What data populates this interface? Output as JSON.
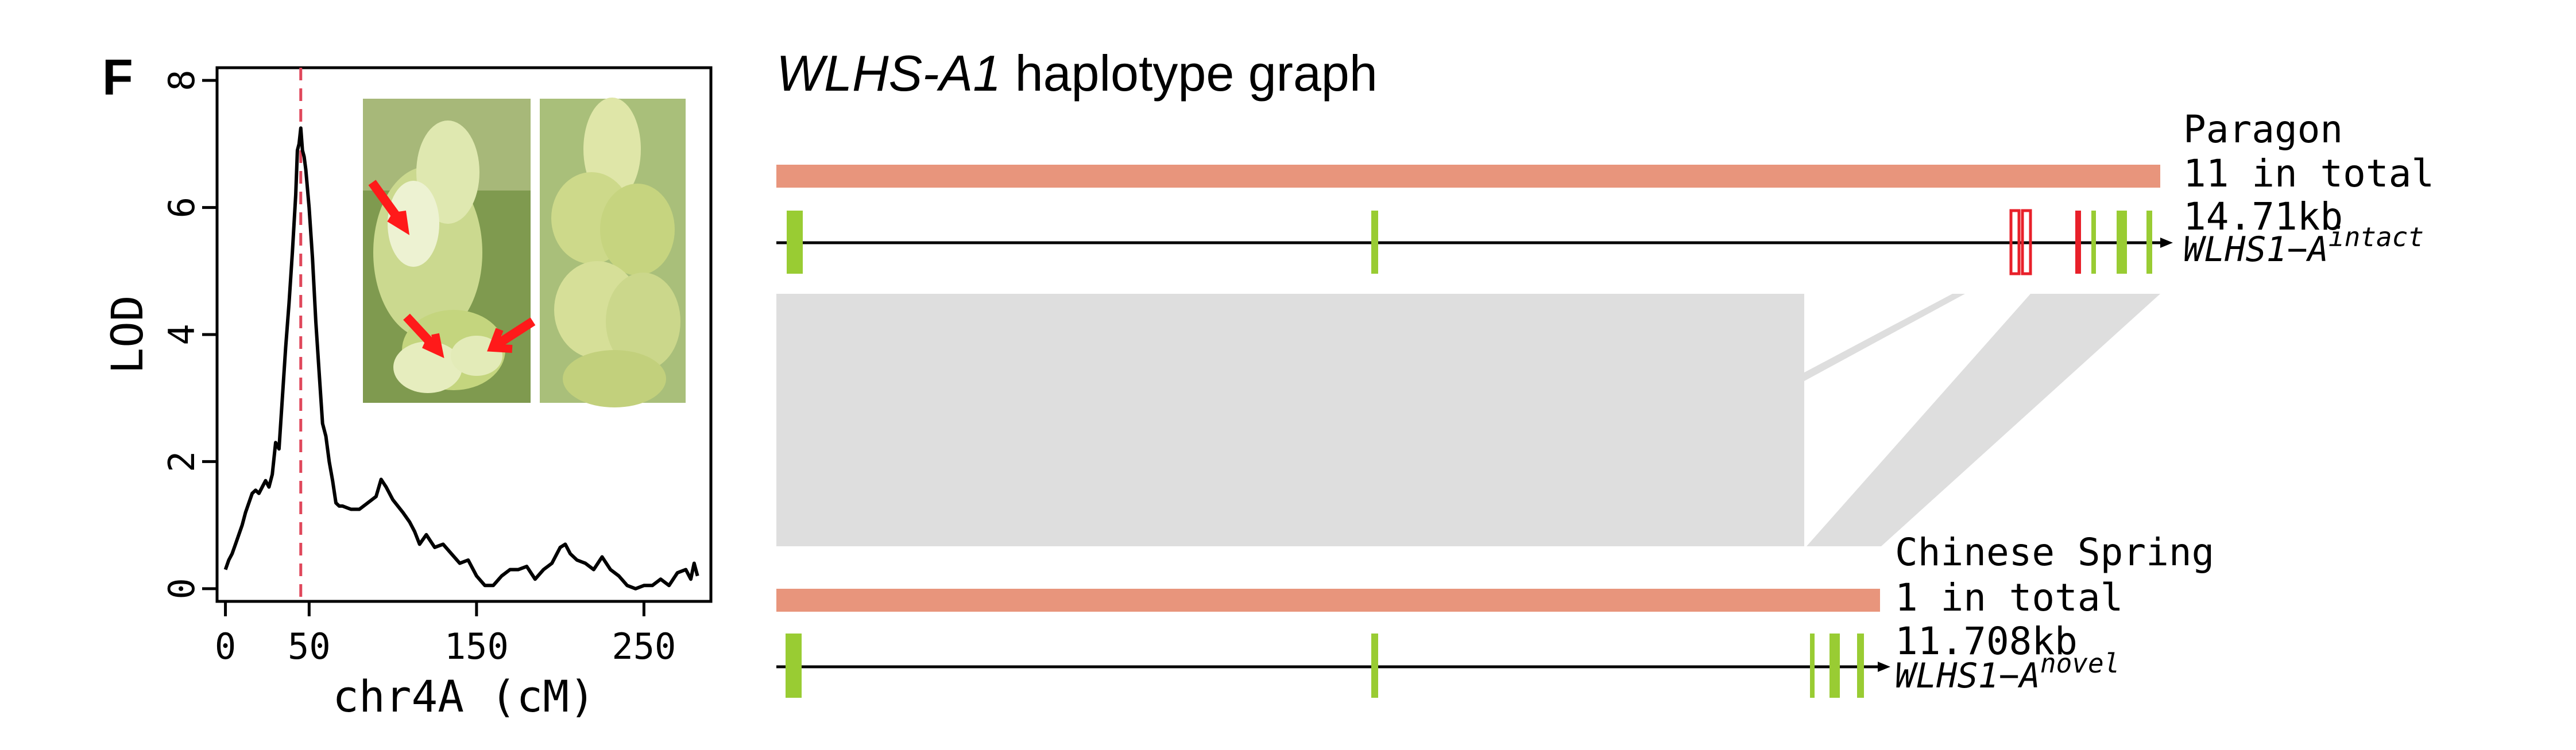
{
  "panel_letter": "F",
  "colors": {
    "line": "#000000",
    "peak_marker": "#e0475b",
    "haplotype_bar": "#e8957c",
    "exon_green": "#99cc33",
    "exon_red": "#e8202a",
    "synteny": "#dedede"
  },
  "chart_data": [
    {
      "type": "line",
      "xlabel": "chr4A (cM)",
      "ylabel": "LOD",
      "xlim": [
        -5,
        290
      ],
      "ylim": [
        -0.2,
        8.2
      ],
      "x_ticks": [
        "0",
        "50",
        "150",
        "250"
      ],
      "x_tick_values": [
        0,
        50,
        150,
        250
      ],
      "y_ticks": [
        "0",
        "2",
        "4",
        "6",
        "8"
      ],
      "y_tick_values": [
        0,
        2,
        4,
        6,
        8
      ],
      "peak_x": 45,
      "series": [
        {
          "x": [
            0,
            2,
            4,
            6,
            8,
            10,
            12,
            14,
            16,
            18,
            20,
            22,
            24,
            26,
            28,
            30,
            32,
            34,
            36,
            38,
            40,
            42,
            43,
            44,
            45,
            46,
            47,
            48,
            50,
            52,
            54,
            56,
            58,
            60,
            62,
            64,
            66,
            68,
            70,
            75,
            80,
            85,
            90,
            93,
            96,
            100,
            103,
            106,
            110,
            113,
            116,
            120,
            125,
            130,
            135,
            140,
            145,
            150,
            155,
            160,
            165,
            170,
            175,
            180,
            185,
            190,
            195,
            200,
            203,
            206,
            210,
            215,
            220,
            225,
            230,
            235,
            240,
            245,
            250,
            255,
            260,
            265,
            270,
            275,
            278,
            280,
            282
          ],
          "y": [
            0.3,
            0.45,
            0.55,
            0.7,
            0.85,
            1.0,
            1.2,
            1.35,
            1.5,
            1.55,
            1.5,
            1.6,
            1.7,
            1.6,
            1.8,
            2.3,
            2.2,
            3.0,
            3.8,
            4.5,
            5.3,
            6.2,
            6.9,
            7.0,
            7.25,
            6.9,
            6.8,
            6.6,
            6.0,
            5.2,
            4.2,
            3.4,
            2.6,
            2.4,
            2.0,
            1.7,
            1.35,
            1.3,
            1.3,
            1.25,
            1.25,
            1.35,
            1.45,
            1.72,
            1.6,
            1.4,
            1.3,
            1.2,
            1.05,
            0.9,
            0.7,
            0.85,
            0.65,
            0.7,
            0.55,
            0.4,
            0.45,
            0.2,
            0.05,
            0.05,
            0.2,
            0.3,
            0.3,
            0.35,
            0.15,
            0.3,
            0.4,
            0.65,
            0.7,
            0.55,
            0.45,
            0.4,
            0.3,
            0.5,
            0.3,
            0.2,
            0.05,
            0.0,
            0.05,
            0.05,
            0.15,
            0.05,
            0.25,
            0.3,
            0.15,
            0.4,
            0.2
          ]
        }
      ]
    },
    {
      "type": "diagram",
      "title_italic": "WLHS-A1",
      "title_rest": " haplotype graph",
      "haplotypes": [
        {
          "name": "Paragon",
          "count_label": "11 in total",
          "size_label": "14.71kb",
          "allele_base": "WLHS1−A",
          "allele_sup": "intact",
          "length_kb": 14.71
        },
        {
          "name": "Chinese Spring",
          "count_label": "1 in total",
          "size_label": "11.708kb",
          "allele_base": "WLHS1−A",
          "allele_sup": "novel",
          "length_kb": 11.708
        }
      ]
    }
  ]
}
